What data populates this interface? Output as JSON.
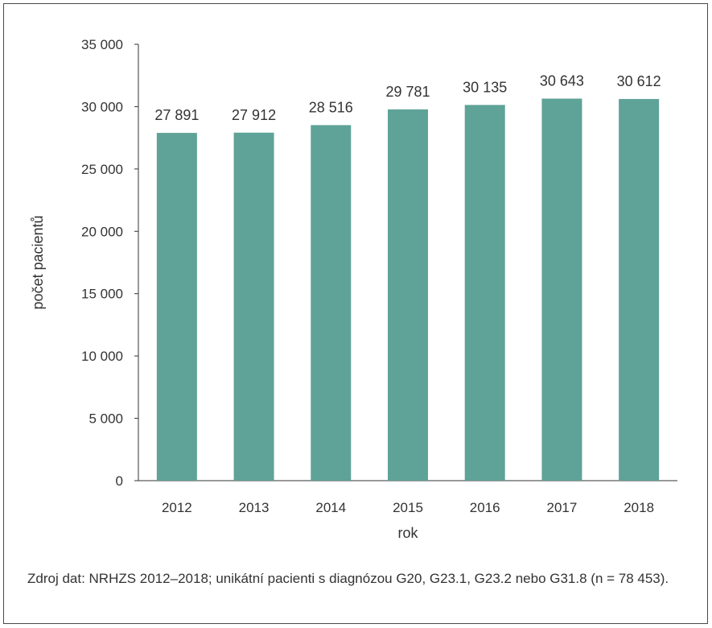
{
  "chart_data": {
    "type": "bar",
    "categories": [
      "2012",
      "2013",
      "2014",
      "2015",
      "2016",
      "2017",
      "2018"
    ],
    "values": [
      27891,
      27912,
      28516,
      29781,
      30135,
      30643,
      30612
    ],
    "value_labels": [
      "27 891",
      "27 912",
      "28 516",
      "29 781",
      "30 135",
      "30 643",
      "30 612"
    ],
    "xlabel": "rok",
    "ylabel": "počet pacientů",
    "ylim": [
      0,
      35000
    ],
    "y_ticks": [
      0,
      5000,
      10000,
      15000,
      20000,
      25000,
      30000,
      35000
    ],
    "y_tick_labels": [
      "0",
      "5 000",
      "10 000",
      "15 000",
      "20 000",
      "25 000",
      "30 000",
      "35 000"
    ],
    "grid": false,
    "legend": false,
    "bar_color": "#5fa298"
  },
  "source_note": "Zdroj dat: NRHZS 2012–2018; unikátní pacienti s diagnózou G20, G23.1, G23.2 nebo G31.8 (n = 78 453)."
}
